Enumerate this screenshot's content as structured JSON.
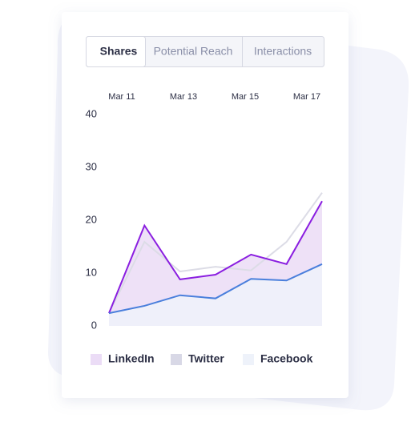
{
  "tabs": [
    "Shares",
    "Potential Reach",
    "Interactions"
  ],
  "chart_data": {
    "type": "area",
    "xlabels": [
      "Mar 11",
      "Mar 13",
      "Mar 15",
      "Mar 17"
    ],
    "ylim": [
      0,
      40
    ],
    "yticks": [
      0,
      10,
      20,
      30,
      40
    ],
    "series": [
      {
        "name": "Twitter",
        "color": "#dcdce6",
        "fill": "#d8d8e6",
        "values": [
          2.4,
          15.9,
          10.3,
          11.2,
          10.5,
          15.9,
          25.2
        ]
      },
      {
        "name": "LinkedIn",
        "color": "#8a1ee0",
        "fill": "#ebdcf6",
        "values": [
          2.4,
          19,
          8.8,
          9.7,
          13.5,
          11.7,
          23.6
        ]
      },
      {
        "name": "Facebook",
        "color": "#4a7fdc",
        "fill": "#eef2fa",
        "values": [
          2.4,
          3.8,
          5.8,
          5.2,
          8.9,
          8.6,
          11.7
        ]
      }
    ],
    "legend_order": [
      1,
      0,
      2
    ]
  }
}
